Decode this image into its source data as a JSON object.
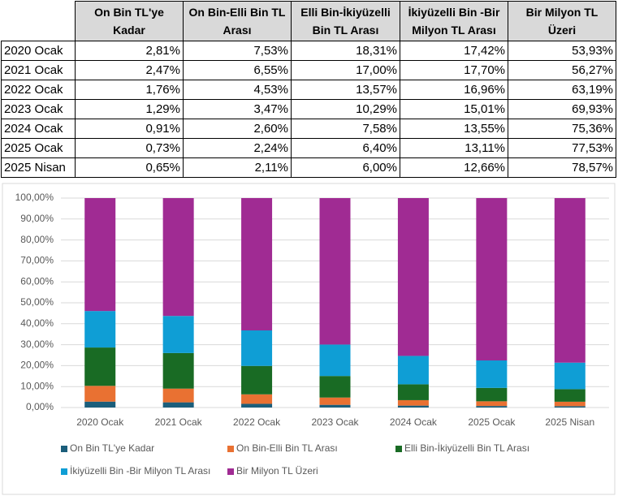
{
  "table": {
    "header": [
      "On Bin TL'ye Kadar",
      "On Bin-Elli Bin TL Arası",
      "Elli Bin-İkiyüzelli Bin TL Arası",
      "İkiyüzelli Bin -Bir Milyon  TL Arası",
      "Bir Milyon TL Üzeri"
    ],
    "rows": [
      [
        "2020 Ocak",
        "2,81%",
        "7,53%",
        "18,31%",
        "17,42%",
        "53,93%"
      ],
      [
        "2021 Ocak",
        "2,47%",
        "6,55%",
        "17,00%",
        "17,70%",
        "56,27%"
      ],
      [
        "2022 Ocak",
        "1,76%",
        "4,53%",
        "13,57%",
        "16,96%",
        "63,19%"
      ],
      [
        "2023 Ocak",
        "1,29%",
        "3,47%",
        "10,29%",
        "15,01%",
        "69,93%"
      ],
      [
        "2024 Ocak",
        "0,91%",
        "2,60%",
        "7,58%",
        "13,55%",
        "75,36%"
      ],
      [
        "2025 Ocak",
        "0,73%",
        "2,24%",
        "6,40%",
        "13,11%",
        "77,53%"
      ],
      [
        "2025 Nisan",
        "0,65%",
        "2,11%",
        "6,00%",
        "12,66%",
        "78,57%"
      ]
    ]
  },
  "chart_data": {
    "type": "stacked_bar",
    "categories": [
      "2020 Ocak",
      "2021 Ocak",
      "2022 Ocak",
      "2023 Ocak",
      "2024 Ocak",
      "2025 Ocak",
      "2025 Nisan"
    ],
    "series": [
      {
        "name": "On Bin TL'ye Kadar",
        "color": "#1b5e7b",
        "values": [
          2.81,
          2.47,
          1.76,
          1.29,
          0.91,
          0.73,
          0.65
        ]
      },
      {
        "name": "On Bin-Elli Bin TL Arası",
        "color": "#e97132",
        "values": [
          7.53,
          6.55,
          4.53,
          3.47,
          2.6,
          2.24,
          2.11
        ]
      },
      {
        "name": "Elli Bin-İkiyüzelli Bin TL Arası",
        "color": "#196b24",
        "values": [
          18.31,
          17.0,
          13.57,
          10.29,
          7.58,
          6.4,
          6.0
        ]
      },
      {
        "name": "İkiyüzelli Bin -Bir Milyon  TL Arası",
        "color": "#0f9ed5",
        "values": [
          17.42,
          17.7,
          16.96,
          15.01,
          13.55,
          13.11,
          12.66
        ]
      },
      {
        "name": "Bir Milyon TL Üzeri",
        "color": "#a02b93",
        "values": [
          53.93,
          56.27,
          63.19,
          69.93,
          75.36,
          77.53,
          78.57
        ]
      }
    ],
    "ylim": [
      0,
      100
    ],
    "yticks": [
      {
        "value": 0,
        "label": "0,00%"
      },
      {
        "value": 10,
        "label": "10,00%"
      },
      {
        "value": 20,
        "label": "20,00%"
      },
      {
        "value": 30,
        "label": "30,00%"
      },
      {
        "value": 40,
        "label": "40,00%"
      },
      {
        "value": 50,
        "label": "50,00%"
      },
      {
        "value": 60,
        "label": "60,00%"
      },
      {
        "value": 70,
        "label": "70,00%"
      },
      {
        "value": 80,
        "label": "80,00%"
      },
      {
        "value": 90,
        "label": "90,00%"
      },
      {
        "value": 100,
        "label": "100,00%"
      }
    ],
    "grid": true,
    "legend": "bottom"
  }
}
